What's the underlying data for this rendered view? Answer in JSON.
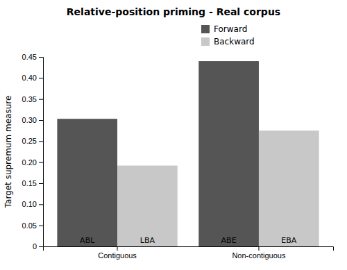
{
  "chart_data": {
    "type": "bar",
    "title": "Relative-position priming - Real corpus",
    "ylabel": "Target supremum measure",
    "categories": [
      "Contiguous",
      "Non-contiguous"
    ],
    "series": [
      {
        "name": "Forward",
        "color": "#555555",
        "values": [
          0.303,
          0.44
        ],
        "annotations": [
          "ABL",
          "ABE"
        ]
      },
      {
        "name": "Backward",
        "color": "#c8c8c8",
        "values": [
          0.192,
          0.275
        ],
        "annotations": [
          "LBA",
          "EBA"
        ]
      }
    ],
    "ylim": [
      0,
      0.45
    ],
    "yticks": [
      0,
      0.05,
      {
        "value": 0.1,
        "label": "0.10"
      },
      0.15,
      {
        "value": 0.2,
        "label": "0.20"
      },
      0.25,
      {
        "value": 0.3,
        "label": "0.30"
      },
      0.35,
      {
        "value": 0.4,
        "label": "0.40"
      },
      0.45
    ],
    "legend": "top",
    "grid": false
  }
}
